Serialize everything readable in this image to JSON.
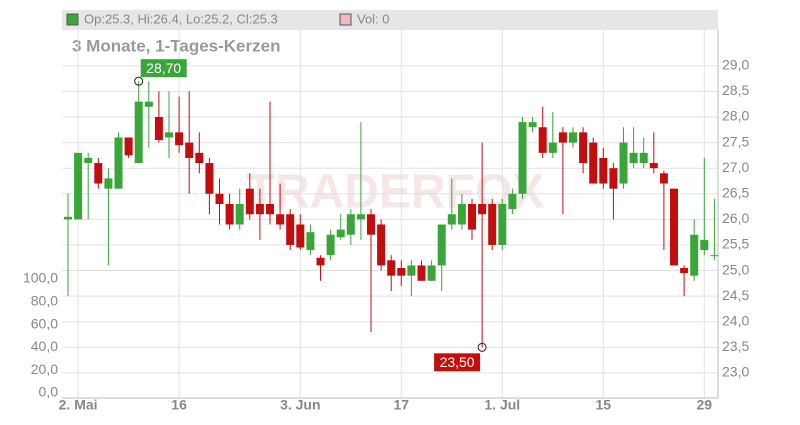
{
  "chart_data": {
    "type": "candlestick",
    "header": {
      "ohlc_label": "Op:25.3, Hi:26.4, Lo:25.2, Cl:25.3",
      "volume_label": "Vol: 0"
    },
    "subtitle": "3 Monate, 1-Tages-Kerzen",
    "watermark": "TRADERFOX",
    "categories": [
      null,
      "2. Mai",
      null,
      null,
      null,
      null,
      null,
      null,
      null,
      null,
      null,
      "16",
      null,
      null,
      null,
      null,
      null,
      null,
      null,
      null,
      null,
      null,
      null,
      "3. Jun",
      null,
      null,
      null,
      null,
      null,
      null,
      null,
      null,
      null,
      "17",
      null,
      null,
      null,
      null,
      null,
      null,
      null,
      null,
      null,
      "1. Jul",
      null,
      null,
      null,
      null,
      null,
      null,
      null,
      null,
      null,
      "15",
      null,
      null,
      null,
      null,
      null,
      null,
      null,
      null,
      null,
      "29",
      null
    ],
    "open": [
      26.0,
      26.0,
      27.1,
      27.1,
      26.6,
      26.6,
      27.6,
      27.1,
      28.2,
      28.0,
      27.6,
      27.7,
      27.5,
      27.3,
      27.1,
      26.5,
      26.3,
      25.9,
      26.6,
      26.3,
      26.3,
      26.1,
      26.1,
      25.9,
      25.4,
      25.25,
      25.3,
      25.65,
      25.7,
      26.0,
      26.1,
      25.9,
      25.2,
      25.05,
      24.9,
      25.1,
      24.8,
      25.1,
      25.9,
      25.9,
      26.3,
      26.3,
      26.3,
      25.5,
      26.2,
      26.5,
      27.8,
      27.8,
      27.3,
      27.7,
      27.5,
      27.7,
      27.5,
      27.2,
      27.0,
      26.7,
      27.1,
      27.1,
      27.1,
      26.9,
      26.6,
      25.05,
      24.9,
      25.4,
      25.3
    ],
    "high": [
      26.5,
      27.3,
      27.3,
      27.2,
      27.0,
      27.7,
      27.6,
      28.7,
      28.7,
      28.5,
      28.5,
      28.4,
      28.5,
      27.7,
      27.2,
      26.8,
      26.5,
      26.6,
      26.9,
      26.6,
      28.3,
      26.7,
      26.2,
      26.1,
      25.9,
      25.3,
      25.8,
      26.1,
      26.2,
      27.9,
      26.2,
      26.0,
      25.3,
      25.2,
      25.2,
      25.2,
      25.2,
      25.9,
      26.8,
      26.5,
      26.4,
      27.5,
      26.4,
      26.4,
      26.6,
      28.0,
      28.0,
      28.2,
      28.1,
      27.8,
      27.8,
      27.8,
      27.6,
      27.4,
      27.1,
      27.8,
      27.8,
      27.6,
      27.7,
      26.95,
      26.6,
      25.1,
      26.0,
      27.2,
      26.4
    ],
    "low": [
      24.5,
      26.0,
      26.0,
      26.6,
      25.1,
      26.6,
      27.2,
      27.1,
      27.4,
      27.5,
      27.2,
      27.3,
      26.5,
      26.9,
      26.1,
      25.9,
      25.8,
      25.8,
      26.0,
      25.6,
      25.9,
      25.8,
      25.4,
      25.4,
      25.3,
      24.8,
      25.2,
      25.6,
      25.5,
      25.6,
      23.8,
      25.0,
      24.6,
      24.7,
      24.5,
      24.8,
      24.8,
      24.6,
      25.8,
      25.8,
      25.6,
      23.5,
      25.4,
      25.4,
      26.1,
      26.4,
      27.7,
      27.2,
      27.2,
      26.1,
      27.4,
      26.9,
      26.7,
      26.6,
      26.0,
      26.6,
      27.0,
      27.0,
      26.9,
      25.4,
      25.1,
      24.5,
      24.8,
      25.3,
      25.2
    ],
    "close": [
      26.05,
      27.3,
      27.2,
      26.7,
      26.8,
      27.6,
      27.25,
      28.3,
      28.3,
      27.55,
      27.7,
      27.45,
      27.2,
      27.1,
      26.5,
      26.3,
      25.9,
      26.3,
      26.1,
      26.1,
      26.1,
      25.9,
      25.5,
      25.45,
      25.75,
      25.1,
      25.7,
      25.8,
      26.1,
      26.1,
      25.7,
      25.1,
      24.9,
      24.9,
      25.1,
      24.8,
      25.1,
      25.9,
      26.1,
      26.3,
      25.8,
      26.1,
      25.5,
      26.3,
      26.5,
      27.9,
      27.9,
      27.3,
      27.5,
      27.5,
      27.7,
      27.1,
      26.7,
      26.7,
      26.6,
      27.5,
      27.3,
      27.3,
      27.0,
      26.7,
      25.1,
      24.95,
      25.7,
      25.6,
      25.3
    ],
    "up_color": "#3aa63a",
    "down_color": "#c20e0e",
    "annotations": [
      {
        "index": 7,
        "value": 28.7,
        "label": "28,70"
      },
      {
        "index": 41,
        "value": 23.5,
        "label": "23,50"
      }
    ],
    "ylim": [
      22.51,
      29.7
    ],
    "yticks": [
      {
        "value": 23.0,
        "label": "23,0"
      },
      {
        "value": 23.5,
        "label": "23,5"
      },
      {
        "value": 24.0,
        "label": "24,0"
      },
      {
        "value": 24.5,
        "label": "24,5"
      },
      {
        "value": 25.0,
        "label": "25,0"
      },
      {
        "value": 25.5,
        "label": "25,5"
      },
      {
        "value": 26.0,
        "label": "26,0"
      },
      {
        "value": 26.5,
        "label": "26,5"
      },
      {
        "value": 27.0,
        "label": "27,0"
      },
      {
        "value": 27.5,
        "label": "27,5"
      },
      {
        "value": 28.0,
        "label": "28,0"
      },
      {
        "value": 28.5,
        "label": "28,5"
      },
      {
        "value": 29.0,
        "label": "29,0"
      }
    ],
    "y2lim": [
      -4.4,
      318.4
    ],
    "y2ticks": [
      {
        "value": 0,
        "label": "0,0"
      },
      {
        "value": 20,
        "label": "20,0"
      },
      {
        "value": 40,
        "label": "40,0"
      },
      {
        "value": 60,
        "label": "60,0"
      },
      {
        "value": 80,
        "label": "80,0"
      },
      {
        "value": 100,
        "label": "100,0"
      }
    ],
    "grid": true
  }
}
